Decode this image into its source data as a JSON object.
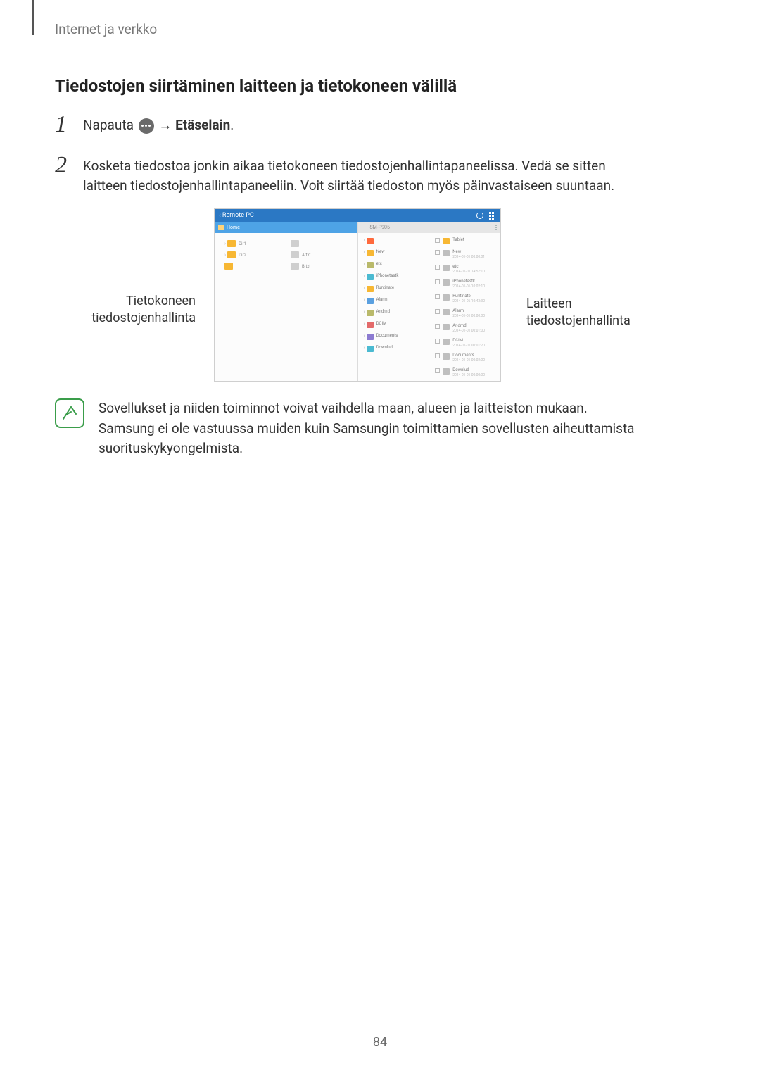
{
  "header": {
    "breadcrumb": "Internet ja verkko"
  },
  "section": {
    "title": "Tiedostojen siirtäminen laitteen ja tietokoneen välillä"
  },
  "steps": {
    "s1": {
      "num": "1",
      "pre": "Napauta ",
      "arrow": " → ",
      "bold": "Etäselain",
      "post": "."
    },
    "s2": {
      "num": "2",
      "text": "Kosketa tiedostoa jonkin aikaa tietokoneen tiedostojenhallintapaneelissa. Vedä se sitten laitteen tiedostojenhallintapaneeliin. Voit siirtää tiedoston myös päinvastaiseen suuntaan."
    }
  },
  "figure": {
    "caption_left_l1": "Tietokoneen",
    "caption_left_l2": "tiedostojenhallinta",
    "caption_right_l1": "Laitteen",
    "caption_right_l2": "tiedostojenhallinta",
    "topbar_title": "‹ Remote PC",
    "pc_header": "Home",
    "dev_header": "SM-P905",
    "pc_items": [
      {
        "chev": "›",
        "label": "Dir1",
        "cls": ""
      },
      {
        "chev": "",
        "label": "",
        "cls": "grey"
      },
      {
        "chev": "›",
        "label": "Dir2",
        "cls": ""
      },
      {
        "chev": "",
        "label": "A.txt",
        "cls": "grey"
      },
      {
        "chev": "",
        "label": "",
        "cls": ""
      },
      {
        "chev": "",
        "label": "B.txt",
        "cls": "grey"
      }
    ],
    "dev_left": [
      {
        "cls": "c-sel",
        "name": "——",
        "sub": "",
        "sel": true
      },
      {
        "cls": "c-orange",
        "name": "New",
        "sub": ""
      },
      {
        "cls": "c-olive",
        "name": "etc",
        "sub": ""
      },
      {
        "cls": "c-teal",
        "name": "iPhonetastk",
        "sub": ""
      },
      {
        "cls": "c-orange",
        "name": "Runtinate",
        "sub": ""
      },
      {
        "cls": "c-blue",
        "name": "Alarm",
        "sub": ""
      },
      {
        "cls": "c-olive",
        "name": "Andrnd",
        "sub": ""
      },
      {
        "cls": "c-red",
        "name": "DCIM",
        "sub": ""
      },
      {
        "cls": "c-purple",
        "name": "Documents",
        "sub": ""
      },
      {
        "cls": "c-teal",
        "name": "Downlud",
        "sub": ""
      }
    ],
    "dev_right": [
      {
        "cls": "c-orange",
        "name": "Tablet",
        "sub": ""
      },
      {
        "cls": "c-grey",
        "name": "New",
        "sub": "2014-01-01 00:00:01"
      },
      {
        "cls": "c-grey",
        "name": "etc",
        "sub": "2014-01-01 14:57:10"
      },
      {
        "cls": "c-grey",
        "name": "iPhonetastk",
        "sub": "2014-01-06 10:02:10"
      },
      {
        "cls": "c-grey",
        "name": "Runtinate",
        "sub": "2014-01-06 10:43:30"
      },
      {
        "cls": "c-grey",
        "name": "Alarm",
        "sub": "2014-01-01 00:00:00"
      },
      {
        "cls": "c-grey",
        "name": "Andrnd",
        "sub": "2014-01-01 00:01:00"
      },
      {
        "cls": "c-grey",
        "name": "DCIM",
        "sub": "2014-01-01 00:01:20"
      },
      {
        "cls": "c-grey",
        "name": "Documents",
        "sub": "2014-01-01 00:02:00"
      },
      {
        "cls": "c-grey",
        "name": "Downlud",
        "sub": "2014-01-01 00:00:00"
      }
    ]
  },
  "note": {
    "text": "Sovellukset ja niiden toiminnot voivat vaihdella maan, alueen ja laitteiston mukaan. Samsung ei ole vastuussa muiden kuin Samsungin toimittamien sovellusten aiheuttamista suorituskykyongelmista."
  },
  "page_number": "84",
  "colors": {
    "accent_blue": "#2b78c4",
    "note_green": "#3a9d4a"
  }
}
